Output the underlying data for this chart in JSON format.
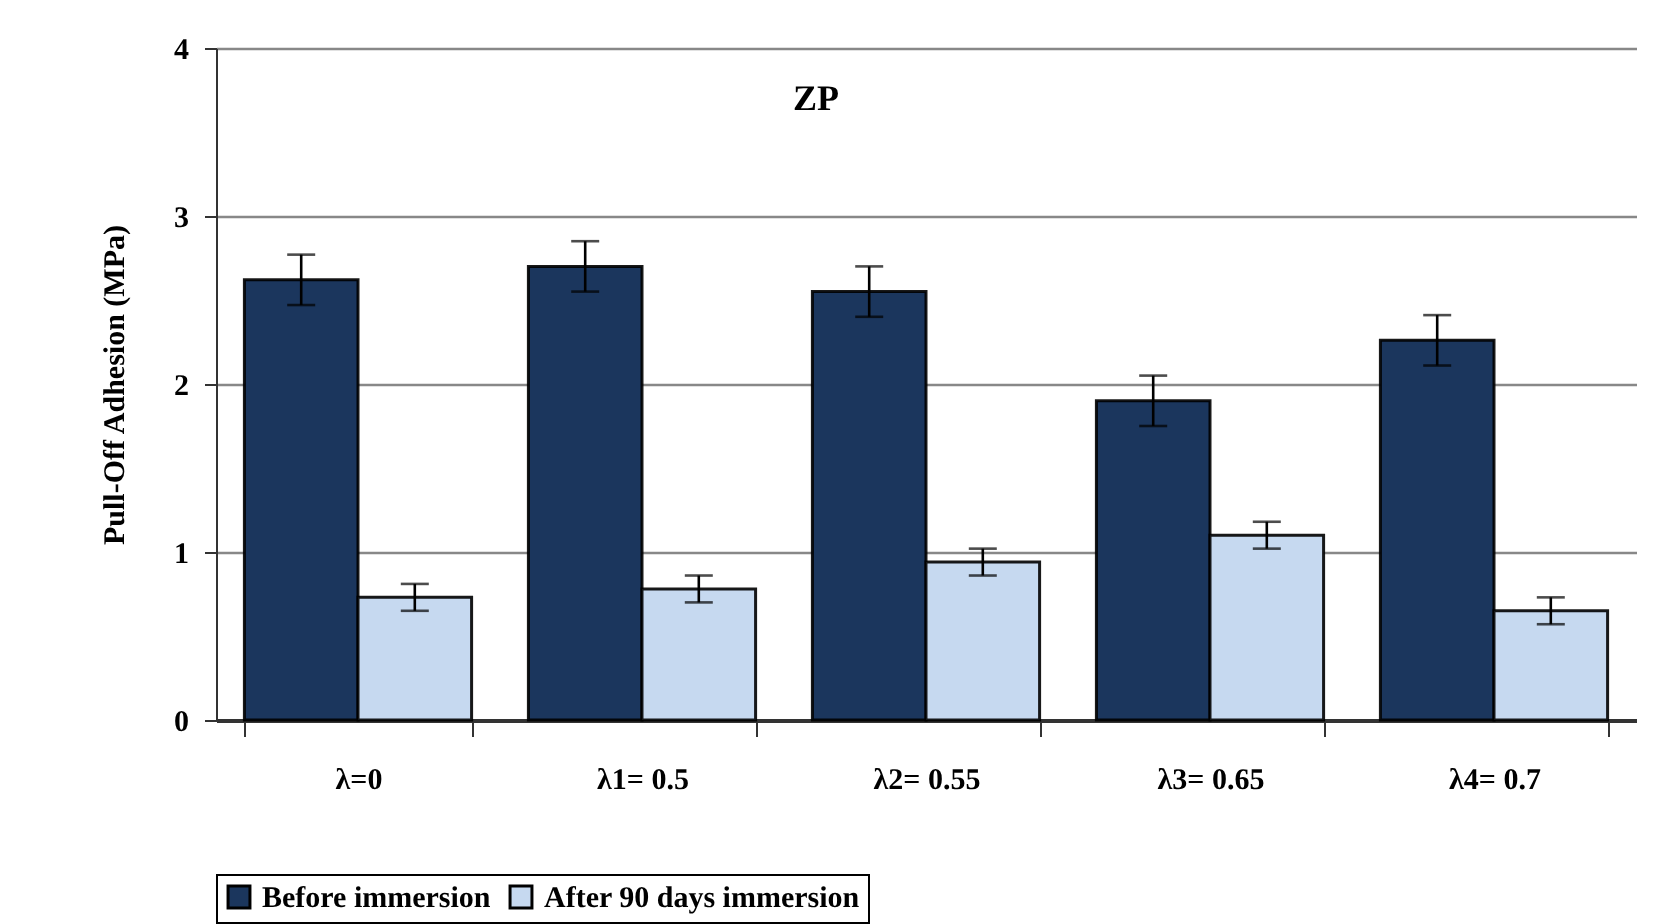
{
  "chart_data": {
    "type": "bar",
    "title": "ZP",
    "ylabel": "Pull-Off  Adhesion (MPa)",
    "categories": [
      "λ=0",
      "λ1= 0.5",
      "λ2= 0.55",
      "λ3= 0.65",
      "λ4= 0.7"
    ],
    "series": [
      {
        "name": "Before immersion",
        "color": "#1b365d",
        "values": [
          2.62,
          2.7,
          2.55,
          1.9,
          2.26
        ],
        "errors": [
          0.15,
          0.15,
          0.15,
          0.15,
          0.15
        ]
      },
      {
        "name": "After 90 days immersion",
        "color": "#c6d9f0",
        "values": [
          0.73,
          0.78,
          0.94,
          1.1,
          0.65
        ],
        "errors": [
          0.08,
          0.08,
          0.08,
          0.08,
          0.08
        ]
      }
    ],
    "ylim": [
      0,
      4
    ],
    "yticks": [
      0,
      1,
      2,
      3,
      4
    ],
    "grid": "y",
    "legend": "bottom"
  }
}
